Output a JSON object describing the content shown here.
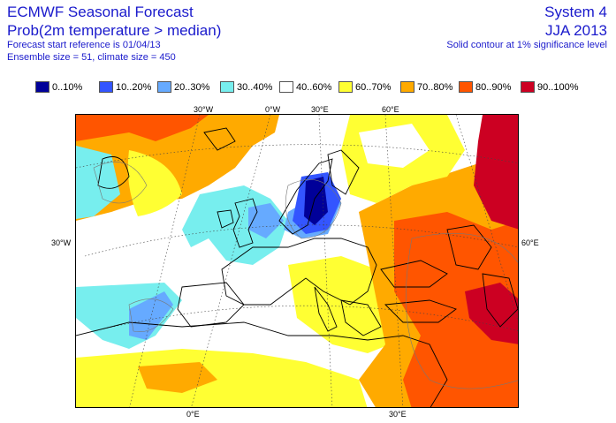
{
  "header": {
    "title": "ECMWF Seasonal Forecast",
    "subtitle": "Prob(2m temperature > median)",
    "start_ref": "Forecast start reference is 01/04/13",
    "ensemble": "Ensemble size = 51, climate size = 450",
    "system": "System 4",
    "season": "JJA 2013",
    "note": "Solid contour at 1% significance level"
  },
  "legend": [
    {
      "label": "0..10%",
      "color": "#000099"
    },
    {
      "label": "10..20%",
      "color": "#3355ff"
    },
    {
      "label": "20..30%",
      "color": "#66aaff"
    },
    {
      "label": "30..40%",
      "color": "#77eeee"
    },
    {
      "label": "40..60%",
      "color": "#ffffff"
    },
    {
      "label": "60..70%",
      "color": "#ffff33"
    },
    {
      "label": "70..80%",
      "color": "#ffaa00"
    },
    {
      "label": "80..90%",
      "color": "#ff5500"
    },
    {
      "label": "90..100%",
      "color": "#cc0022"
    }
  ],
  "axis_labels": {
    "top": [
      "30°W",
      "0°W",
      "30°E",
      "60°E"
    ],
    "bottom": [
      "0°E",
      "30°E"
    ],
    "left": "30°W",
    "right": "60°E"
  }
}
